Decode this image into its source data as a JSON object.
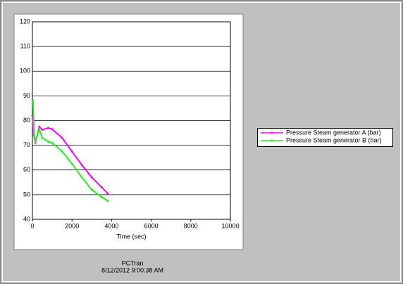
{
  "chart_data": {
    "type": "line",
    "xlabel": "Time (sec)",
    "series": [
      {
        "name": "Pressure Steam generator A (bar)",
        "color": "#ff00ff",
        "x": [
          0,
          50,
          150,
          350,
          500,
          800,
          1000,
          1500,
          2000,
          2500,
          3000,
          3500,
          3800
        ],
        "values": [
          82,
          75,
          71,
          77.5,
          76.3,
          77,
          76.5,
          73,
          67.5,
          62,
          57,
          53,
          50.5
        ]
      },
      {
        "name": "Pressure Steam generator B (bar)",
        "color": "#22ee22",
        "x": [
          0,
          30,
          80,
          150,
          350,
          500,
          800,
          1000,
          1500,
          2000,
          2500,
          3000,
          3500,
          3800
        ],
        "values": [
          88,
          88,
          75,
          71.5,
          76.5,
          73,
          71.5,
          71,
          67.5,
          62.5,
          57,
          52,
          49,
          47.5
        ]
      }
    ],
    "xlim": [
      0,
      10000
    ],
    "xticks": [
      0,
      2000,
      4000,
      6000,
      8000,
      10000
    ],
    "ylim": [
      40,
      120
    ],
    "yticks": [
      40,
      50,
      60,
      70,
      80,
      90,
      100,
      110,
      120
    ],
    "grid": true,
    "legend": "right"
  },
  "footer": {
    "app": "PCTran",
    "timestamp": "8/12/2012 9:00:38 AM"
  }
}
